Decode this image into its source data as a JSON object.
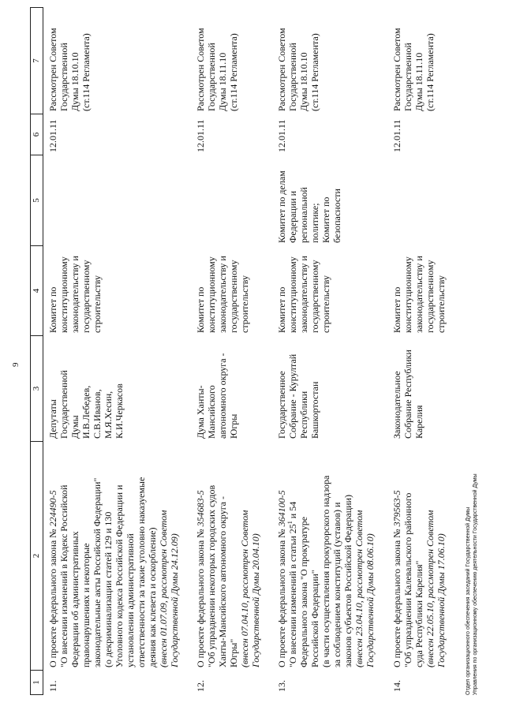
{
  "page_number": "9",
  "header": [
    "1",
    "2",
    "3",
    "4",
    "5",
    "6",
    "7"
  ],
  "rows": [
    {
      "num": "11.",
      "col2": [
        [
          [
            "О проекте федерального закона № ",
            ""
          ],
          [
            "224490-5",
            "i"
          ]
        ],
        [
          [
            "\"О внесении изменений в Кодекс Российской",
            ""
          ]
        ],
        [
          [
            "Федерации об административных",
            ""
          ]
        ],
        [
          [
            "правонарушениях и некоторые",
            ""
          ]
        ],
        [
          [
            "законодательные акты Российской Федерации\"",
            ""
          ]
        ],
        [
          [
            "(о декриминализации статей 129 и 130",
            ""
          ]
        ],
        [
          [
            "Уголовного кодекса Российской Федерации и",
            ""
          ]
        ],
        [
          [
            "установлении административной",
            ""
          ]
        ],
        [
          [
            "ответственности за такие уголовно наказуемые",
            ""
          ]
        ],
        [
          [
            "деяния как клевета и оскорбление)",
            ""
          ]
        ],
        [
          [
            "(внесен 01.07.09, рассмотрен Советом",
            "i"
          ]
        ],
        [
          [
            "Государственной Думы 24.12.09)",
            "i"
          ]
        ]
      ],
      "col3": [
        "Депутаты",
        "Государственной",
        "Думы",
        "И.В.Лебедев,",
        "С.В.Иванов,",
        "М.Я.Хесин,",
        "К.И.Черкасов"
      ],
      "col4": [
        "Комитет  по",
        "конституционному",
        "законодательству и",
        "государственному",
        "строительству"
      ],
      "col5": [],
      "col6": [
        "12.01.11"
      ],
      "col7": [
        "Рассмотрен Советом",
        "Государственной",
        "Думы 18.10.10",
        "(ст.114 Регламента)"
      ]
    },
    {
      "num": "12.",
      "col2": [
        [
          [
            "О проекте федерального закона № ",
            ""
          ],
          [
            "354683-5",
            "i"
          ]
        ],
        [
          [
            "\"Об упразднении некоторых городских судов",
            ""
          ]
        ],
        [
          [
            "Ханты-Мансийского автономного округа -",
            ""
          ]
        ],
        [
          [
            "Югры\"",
            ""
          ]
        ],
        [
          [
            "(внесен 07.04.10, рассмотрен Советом",
            "i"
          ]
        ],
        [
          [
            "Государственной Думы 20.04.10)",
            "i"
          ]
        ]
      ],
      "col3": [
        "Дума Ханты-",
        "Мансийского",
        "автономного округа -",
        "Югры"
      ],
      "col4": [
        "Комитет  по",
        "конституционному",
        "законодательству и",
        "государственному",
        "строительству"
      ],
      "col5": [],
      "col6": [
        "12.01.11"
      ],
      "col7": [
        "Рассмотрен Советом",
        "Государственной",
        "Думы 18.11.10",
        "(ст.114 Регламента)"
      ]
    },
    {
      "num": "13.",
      "col2": [
        [
          [
            "О проекте федерального закона № ",
            ""
          ],
          [
            "364100-5",
            "i"
          ]
        ],
        [
          [
            "\"О внесении изменений в статьи 25",
            ""
          ],
          [
            "1",
            "sup"
          ],
          [
            " и 54",
            ""
          ]
        ],
        [
          [
            "Федерального закона \"О прокуратуре",
            ""
          ]
        ],
        [
          [
            "Российской Федерации\"",
            ""
          ]
        ],
        [
          [
            "(в части осуществления прокурорского надзора",
            ""
          ]
        ],
        [
          [
            "за соблюдением конституций (уставов) и",
            ""
          ]
        ],
        [
          [
            "законов субъектов Российской Федерации)",
            ""
          ]
        ],
        [
          [
            "(внесен 23.04.10, рассмотрен Советом",
            "i"
          ]
        ],
        [
          [
            "Государственной Думы 08.06.10)",
            "i"
          ]
        ]
      ],
      "col3": [
        "Государственное",
        "Собрание - Курултай",
        "Республики",
        "Башкортостан"
      ],
      "col4": [
        "Комитет  по",
        "конституционному",
        "законодательству и",
        "государственному",
        "строительству"
      ],
      "col5": [
        "Комитет по делам",
        "Федерации и",
        "региональной",
        "политике;",
        "Комитет по",
        "безопасности"
      ],
      "col6": [
        "12.01.11"
      ],
      "col7": [
        "Рассмотрен Советом",
        "Государственной",
        "Думы 18.10.10",
        "(ст.114 Регламента)"
      ]
    },
    {
      "num": "14.",
      "col2": [
        [
          [
            "О проекте федерального закона № ",
            ""
          ],
          [
            "379563-5",
            "i"
          ]
        ],
        [
          [
            "\"Об упразднении Калевальского районного",
            ""
          ]
        ],
        [
          [
            "суда Республики Карелия\"",
            ""
          ]
        ],
        [
          [
            "(внесен 22.05.10, рассмотрен Советом",
            "i"
          ]
        ],
        [
          [
            "Государственной Думы 17.06.10)",
            "i"
          ]
        ]
      ],
      "col3": [
        "Законодательное",
        "Собрание Республики",
        "Карелия"
      ],
      "col4": [
        "Комитет  по",
        "конституционному",
        "законодательству и",
        "государственному",
        "строительству"
      ],
      "col5": [],
      "col6": [
        "12.01.11"
      ],
      "col7": [
        "Рассмотрен Советом",
        "Государственной",
        "Думы 18.11.10",
        "(ст.114 Регламента)"
      ]
    }
  ],
  "footer": {
    "line1": "Отдел организационного обеспечения заседаний Государственной Думы",
    "line2": "Управления по организационному обеспечению деятельности Государственной Думы"
  }
}
